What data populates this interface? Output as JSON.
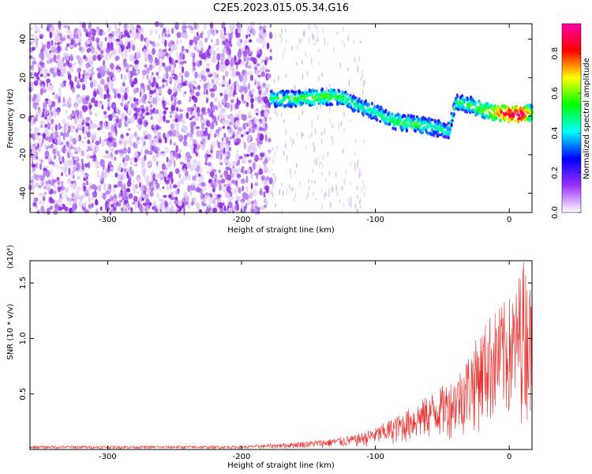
{
  "title": "C2E5.2023.015.05.34.G16",
  "chart_data": [
    {
      "type": "heatmap",
      "xlabel": "Height of straight line (km)",
      "ylabel": "Frequency (Hz)",
      "xlim": [
        -358,
        17
      ],
      "ylim": [
        -50,
        48
      ],
      "x_ticks": [
        "-300",
        "-200",
        "-100",
        "0"
      ],
      "y_ticks": [
        "40",
        "20",
        "0",
        "-20",
        "-40"
      ],
      "grid": false,
      "colorbar": {
        "label": "Normalized spectral amplitude",
        "range": [
          0,
          0.95
        ],
        "ticks": [
          "0.0",
          "0.2",
          "0.4",
          "0.6",
          "0.8"
        ],
        "colors": [
          "#ffffff",
          "#9b30ff",
          "#0000ff",
          "#00ffff",
          "#00ff00",
          "#ffff00",
          "#ff0000",
          "#ff00aa"
        ]
      },
      "noise_region": {
        "x": [
          -358,
          -178
        ],
        "y": [
          -50,
          48
        ],
        "level": 0.15
      },
      "signal_track": [
        {
          "x": -178,
          "y": 9,
          "amp": 0.5
        },
        {
          "x": -160,
          "y": 9,
          "amp": 0.55
        },
        {
          "x": -140,
          "y": 10,
          "amp": 0.6
        },
        {
          "x": -125,
          "y": 10,
          "amp": 0.55
        },
        {
          "x": -115,
          "y": 6,
          "amp": 0.5
        },
        {
          "x": -100,
          "y": 2,
          "amp": 0.5
        },
        {
          "x": -85,
          "y": -3,
          "amp": 0.55
        },
        {
          "x": -70,
          "y": -4,
          "amp": 0.55
        },
        {
          "x": -55,
          "y": -6,
          "amp": 0.5
        },
        {
          "x": -45,
          "y": -8,
          "amp": 0.45
        },
        {
          "x": -40,
          "y": 7,
          "amp": 0.5
        },
        {
          "x": -30,
          "y": 6,
          "amp": 0.55
        },
        {
          "x": -20,
          "y": 3,
          "amp": 0.6
        },
        {
          "x": -10,
          "y": 2,
          "amp": 0.75
        },
        {
          "x": 0,
          "y": 1,
          "amp": 0.9
        },
        {
          "x": 10,
          "y": 1,
          "amp": 0.95
        },
        {
          "x": 17,
          "y": 2,
          "amp": 0.6
        }
      ]
    },
    {
      "type": "line",
      "xlabel": "Height of straight line (km)",
      "ylabel": "SNR (10 * v/v)",
      "y_scale_note": "(x10⁴)",
      "xlim": [
        -358,
        17
      ],
      "ylim": [
        0,
        1.7
      ],
      "x_ticks": [
        "-300",
        "-200",
        "-100",
        "0"
      ],
      "y_ticks": [
        "0.5",
        "1.0",
        "1.5"
      ],
      "grid": false,
      "series": [
        {
          "color": "#e8302e",
          "envelope": [
            {
              "x": -358,
              "y": 0.03
            },
            {
              "x": -200,
              "y": 0.03
            },
            {
              "x": -170,
              "y": 0.05
            },
            {
              "x": -140,
              "y": 0.08
            },
            {
              "x": -115,
              "y": 0.12
            },
            {
              "x": -100,
              "y": 0.18
            },
            {
              "x": -80,
              "y": 0.3
            },
            {
              "x": -60,
              "y": 0.45
            },
            {
              "x": -40,
              "y": 0.6
            },
            {
              "x": -25,
              "y": 0.9
            },
            {
              "x": -15,
              "y": 1.1
            },
            {
              "x": -5,
              "y": 1.2
            },
            {
              "x": 5,
              "y": 1.3
            },
            {
              "x": 10,
              "y": 1.6
            },
            {
              "x": 17,
              "y": 1.3
            }
          ]
        }
      ]
    }
  ]
}
